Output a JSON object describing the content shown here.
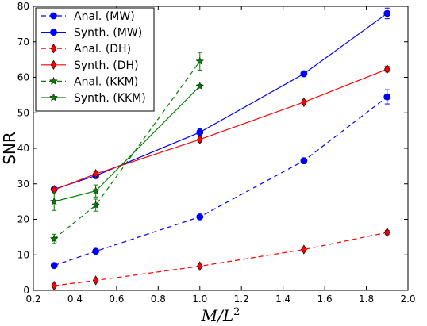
{
  "chart_data": {
    "type": "line",
    "title": "",
    "xlabel": "M/L",
    "xlabel_superscript": "2",
    "ylabel": "SNR",
    "xlim": [
      0.2,
      2.0
    ],
    "ylim": [
      0,
      80
    ],
    "xticks": [
      "0.2",
      "0.4",
      "0.6",
      "0.8",
      "1.0",
      "1.2",
      "1.4",
      "1.6",
      "1.8",
      "2.0"
    ],
    "yticks": [
      "0",
      "10",
      "20",
      "30",
      "40",
      "50",
      "60",
      "70",
      "80"
    ],
    "grid": false,
    "legend_position": "top-left",
    "series": [
      {
        "name": "Anal. (MW)",
        "color": "#0000ff",
        "linestyle": "dashed",
        "marker": "circle",
        "x": [
          0.3,
          0.5,
          1.0,
          1.5,
          1.9
        ],
        "y": [
          7.0,
          11.0,
          20.7,
          36.5,
          54.5
        ],
        "err": [
          0.4,
          0.4,
          0.5,
          0.8,
          2.0
        ]
      },
      {
        "name": "Synth. (MW)",
        "color": "#0000ff",
        "linestyle": "solid",
        "marker": "circle",
        "x": [
          0.3,
          0.5,
          1.0,
          1.5,
          1.9
        ],
        "y": [
          28.5,
          32.3,
          44.5,
          61.0,
          78.0
        ],
        "err": [
          0.5,
          0.6,
          1.0,
          0.8,
          1.5
        ]
      },
      {
        "name": "Anal. (DH)",
        "color": "#ff0000",
        "linestyle": "dashed",
        "marker": "thin_diamond",
        "x": [
          0.3,
          0.5,
          1.0,
          1.5,
          1.9
        ],
        "y": [
          1.3,
          2.8,
          6.8,
          11.5,
          16.3
        ],
        "err": [
          0.3,
          0.3,
          0.4,
          0.5,
          0.6
        ]
      },
      {
        "name": "Synth. (DH)",
        "color": "#ff0000",
        "linestyle": "solid",
        "marker": "thin_diamond",
        "x": [
          0.3,
          0.5,
          1.0,
          1.5,
          1.9
        ],
        "y": [
          28.3,
          32.8,
          42.5,
          53.0,
          62.3
        ],
        "err": [
          0.5,
          0.6,
          0.8,
          0.6,
          0.8
        ]
      },
      {
        "name": "Anal. (KKM)",
        "color": "#008000",
        "linestyle": "dashed",
        "marker": "star",
        "x": [
          0.3,
          0.5,
          1.0
        ],
        "y": [
          14.5,
          24.0,
          64.5
        ],
        "err": [
          1.3,
          1.7,
          2.5
        ]
      },
      {
        "name": "Synth. (KKM)",
        "color": "#008000",
        "linestyle": "solid",
        "marker": "star",
        "x": [
          0.3,
          0.5,
          1.0
        ],
        "y": [
          25.0,
          28.0,
          57.5
        ],
        "err": [
          2.5,
          1.7,
          0.5
        ]
      }
    ]
  }
}
